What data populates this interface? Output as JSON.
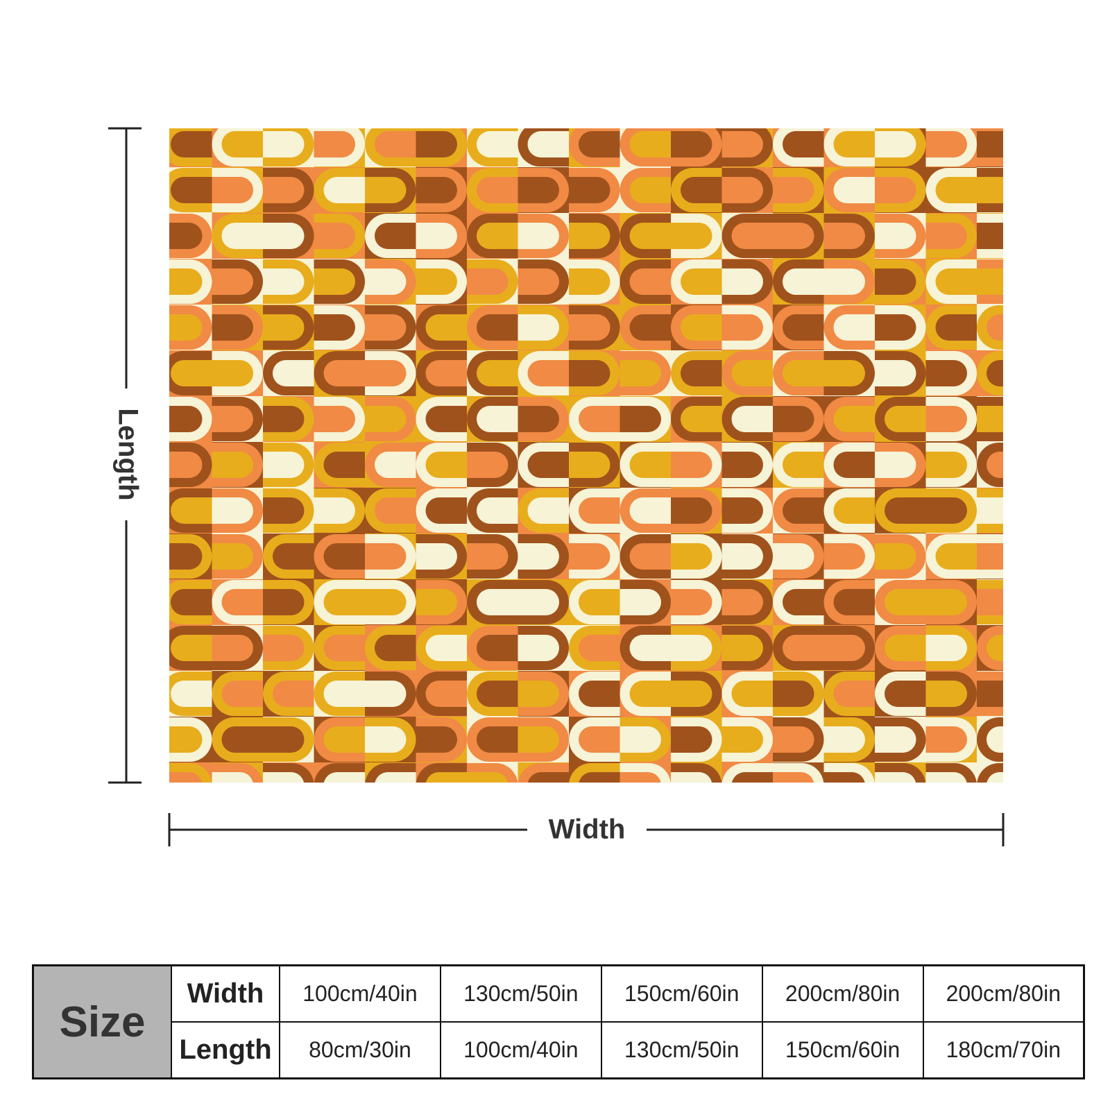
{
  "dimensions": {
    "length_label": "Length",
    "width_label": "Width"
  },
  "size_table": {
    "header": "Size",
    "rows": [
      [
        "Width",
        "100cm/40in",
        "130cm/50in",
        "150cm/60in",
        "200cm/80in",
        "200cm/80in"
      ],
      [
        "Length",
        "80cm/30in",
        "100cm/40in",
        "130cm/50in",
        "150cm/60in",
        "180cm/70in"
      ]
    ]
  }
}
